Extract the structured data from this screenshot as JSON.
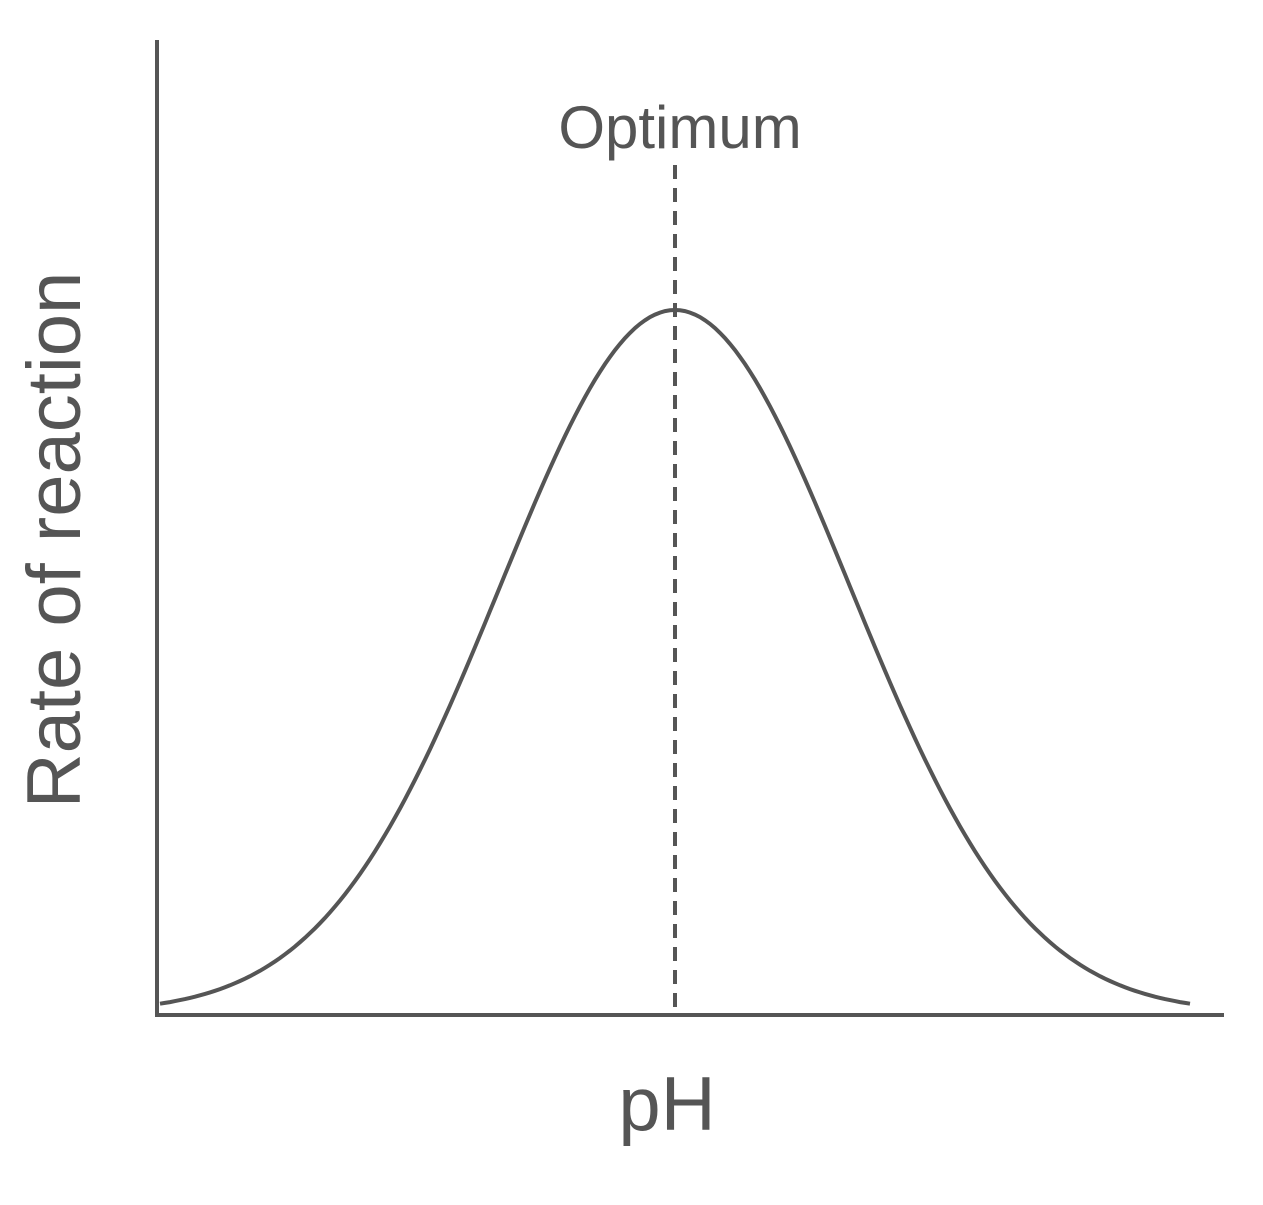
{
  "annotation": "Optimum",
  "axes": {
    "x_label": "pH",
    "y_label": "Rate of reaction"
  }
}
